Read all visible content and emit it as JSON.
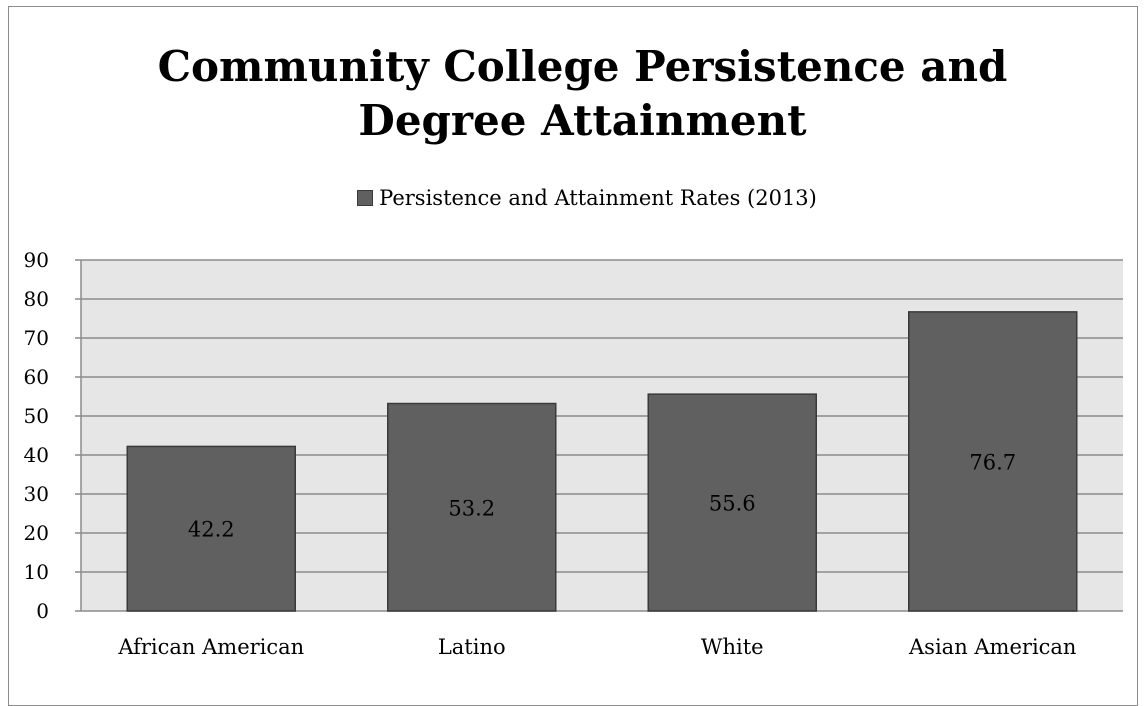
{
  "chart_data": {
    "type": "bar",
    "title_line1": "Community College Persistence and",
    "title_line2": "Degree Attainment",
    "categories": [
      "African American",
      "Latino",
      "White",
      "Asian American"
    ],
    "series": [
      {
        "name": "Persistence and Attainment Rates (2013)",
        "values": [
          42.2,
          53.2,
          55.6,
          76.7
        ],
        "labels": [
          "42.2",
          "53.2",
          "55.6",
          "76.7"
        ],
        "color": "#606060"
      }
    ],
    "ylim": [
      0,
      90
    ],
    "yticks": [
      "0",
      "10",
      "20",
      "30",
      "40",
      "50",
      "60",
      "70",
      "80",
      "90"
    ],
    "legend_position": "top",
    "grid": true,
    "plot_background": "#e6e6e6",
    "gridline_color": "#8c8c8c"
  }
}
